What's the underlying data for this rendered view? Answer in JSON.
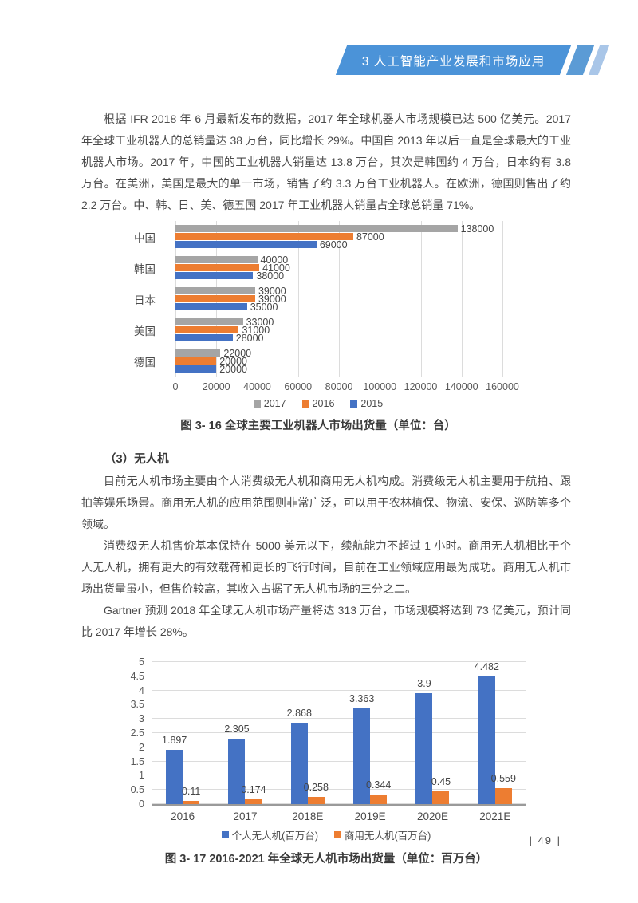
{
  "header": {
    "title": "3 人工智能产业发展和市场应用"
  },
  "paragraphs": {
    "p1": "根据 IFR 2018 年 6 月最新发布的数据，2017 年全球机器人市场规模已达 500 亿美元。2017 年全球工业机器人的总销量达 38 万台，同比增长 29%。中国自 2013 年以后一直是全球最大的工业机器人市场。2017 年，中国的工业机器人销量达 13.8 万台，其次是韩国约 4 万台，日本约有 3.8 万台。在美洲，美国是最大的单一市场，销售了约 3.3 万台工业机器人。在欧洲，德国则售出了约 2.2 万台。中、韩、日、美、德五国 2017 年工业机器人销量占全球总销量 71%。",
    "section_heading": "（3）无人机",
    "p2": "目前无人机市场主要由个人消费级无人机和商用无人机构成。消费级无人机主要用于航拍、跟拍等娱乐场景。商用无人机的应用范围则非常广泛，可以用于农林植保、物流、安保、巡防等多个领域。",
    "p3": "消费级无人机售价基本保持在 5000 美元以下，续航能力不超过 1 小时。商用无人机相比于个人无人机，拥有更大的有效载荷和更长的飞行时间，目前在工业领域应用最为成功。商用无人机市场出货量虽小，但售价较高，其收入占据了无人机市场的三分之二。",
    "p4": "Gartner 预测 2018 年全球无人机市场产量将达 313 万台，市场规模将达到 73 亿美元，预计同比 2017 年增长 28%。"
  },
  "chart_data": [
    {
      "type": "bar",
      "orientation": "horizontal",
      "title": "",
      "caption": "图 3- 16 全球主要工业机器人市场出货量（单位：台）",
      "categories": [
        "中国",
        "韩国",
        "日本",
        "美国",
        "德国"
      ],
      "series": [
        {
          "name": "2017",
          "color": "#a5a5a5",
          "values": [
            138000,
            40000,
            39000,
            33000,
            22000
          ],
          "labels": [
            "138000",
            "40000",
            "39000",
            "33000",
            "22000"
          ]
        },
        {
          "name": "2016",
          "color": "#ed7d31",
          "values": [
            87000,
            41000,
            39000,
            31000,
            20000
          ],
          "labels": [
            "87000",
            "41000",
            "39000",
            "31000",
            "20000"
          ]
        },
        {
          "name": "2015",
          "color": "#4472c4",
          "values": [
            69000,
            38000,
            35000,
            28000,
            20000
          ],
          "labels": [
            "69000",
            "38000",
            "35000",
            "28000",
            "20000"
          ]
        }
      ],
      "x_ticks": [
        "0",
        "20000",
        "40000",
        "60000",
        "80000",
        "100000",
        "120000",
        "140000",
        "160000"
      ],
      "xlim": [
        0,
        160000
      ],
      "grid": "vertical",
      "legend_position": "bottom"
    },
    {
      "type": "bar",
      "orientation": "vertical",
      "title": "",
      "caption": "图 3- 17 2016-2021 年全球无人机市场出货量（单位：百万台）",
      "categories": [
        "2016",
        "2017",
        "2018E",
        "2019E",
        "2020E",
        "2021E"
      ],
      "series": [
        {
          "name": "个人无人机(百万台)",
          "color": "#4472c4",
          "values": [
            1.897,
            2.305,
            2.868,
            3.363,
            3.9,
            4.482
          ],
          "labels": [
            "1.897",
            "2.305",
            "2.868",
            "3.363",
            "3.9",
            "4.482"
          ]
        },
        {
          "name": "商用无人机(百万台)",
          "color": "#ed7d31",
          "values": [
            0.11,
            0.174,
            0.258,
            0.344,
            0.45,
            0.559
          ],
          "labels": [
            "0.11",
            "0.174",
            "0.258",
            "0.344",
            "0.45",
            "0.559"
          ]
        }
      ],
      "y_ticks": [
        "5",
        "4.5",
        "4",
        "3.5",
        "3",
        "2.5",
        "2",
        "1.5",
        "1",
        "0.5",
        "0"
      ],
      "ylim": [
        0,
        5
      ],
      "grid": "horizontal",
      "legend_position": "bottom"
    }
  ],
  "footer": {
    "page_number": "| 49 |"
  }
}
